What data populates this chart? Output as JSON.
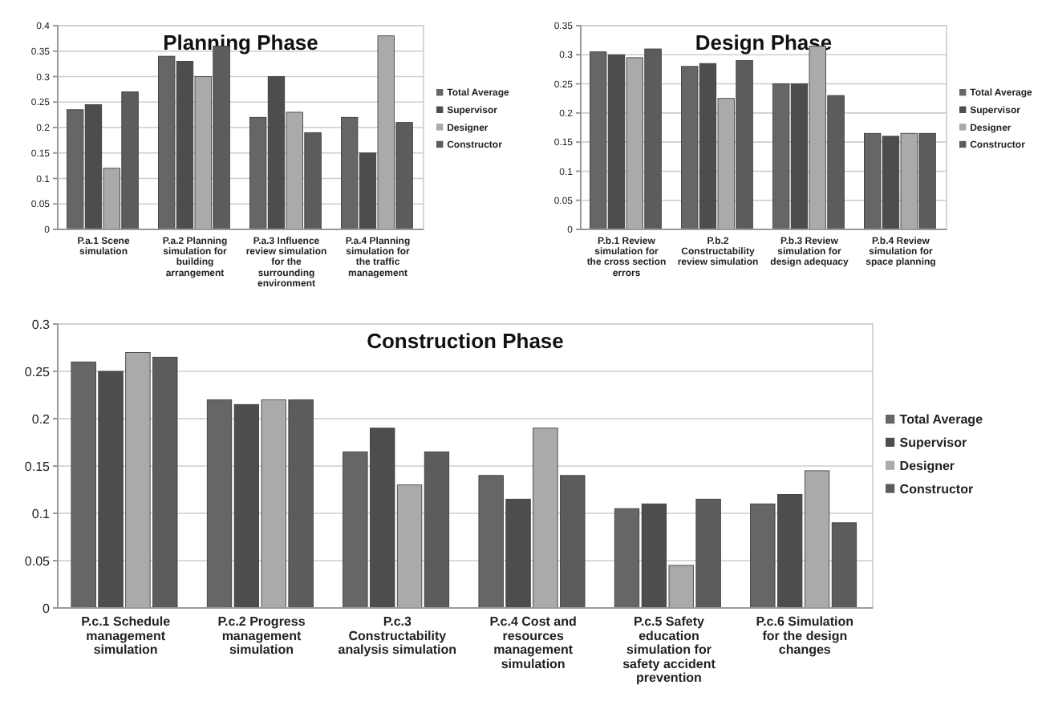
{
  "chart_data": [
    {
      "type": "bar",
      "title": "Planning Phase",
      "categories": [
        "P.a.1 Scene simulation",
        "P.a.2 Planning simulation for building arrangement",
        "P.a.3 Influence review simulation for the surrounding environment",
        "P.a.4 Planning simulation for the traffic management"
      ],
      "series": [
        {
          "name": "Total Average",
          "color": "#666666",
          "values": [
            0.235,
            0.34,
            0.22,
            0.22
          ]
        },
        {
          "name": "Supervisor",
          "color": "#4d4d4d",
          "values": [
            0.245,
            0.33,
            0.3,
            0.15
          ]
        },
        {
          "name": "Designer",
          "color": "#aaaaaa",
          "values": [
            0.12,
            0.3,
            0.23,
            0.38
          ]
        },
        {
          "name": "Constructor",
          "color": "#5c5c5c",
          "values": [
            0.27,
            0.36,
            0.19,
            0.21
          ]
        }
      ],
      "ylim": [
        0,
        0.4
      ],
      "yticks": [
        0,
        0.05,
        0.1,
        0.15,
        0.2,
        0.25,
        0.3,
        0.35,
        0.4
      ],
      "grid": "y",
      "legend": "right"
    },
    {
      "type": "bar",
      "title": "Design Phase",
      "categories": [
        "P.b.1 Review simulation for the cross section errors",
        "P.b.2 Constructability review simulation",
        "P.b.3 Review simulation for design adequacy",
        "P.b.4 Review simulation for space planning"
      ],
      "series": [
        {
          "name": "Total Average",
          "color": "#666666",
          "values": [
            0.305,
            0.28,
            0.25,
            0.165
          ]
        },
        {
          "name": "Supervisor",
          "color": "#4d4d4d",
          "values": [
            0.3,
            0.285,
            0.25,
            0.16
          ]
        },
        {
          "name": "Designer",
          "color": "#aaaaaa",
          "values": [
            0.295,
            0.225,
            0.315,
            0.165
          ]
        },
        {
          "name": "Constructor",
          "color": "#5c5c5c",
          "values": [
            0.31,
            0.29,
            0.23,
            0.165
          ]
        }
      ],
      "ylim": [
        0,
        0.35
      ],
      "yticks": [
        0,
        0.05,
        0.1,
        0.15,
        0.2,
        0.25,
        0.3,
        0.35
      ],
      "grid": "y",
      "legend": "right"
    },
    {
      "type": "bar",
      "title": "Construction Phase",
      "categories": [
        "P.c.1 Schedule management simulation",
        "P.c.2 Progress management simulation",
        "P.c.3 Constructability analysis simulation",
        "P.c.4 Cost and resources management simulation",
        "P.c.5 Safety education simulation for safety accident prevention",
        "P.c.6 Simulation for the design changes"
      ],
      "series": [
        {
          "name": "Total Average",
          "color": "#666666",
          "values": [
            0.26,
            0.22,
            0.165,
            0.14,
            0.105,
            0.11
          ]
        },
        {
          "name": "Supervisor",
          "color": "#4d4d4d",
          "values": [
            0.25,
            0.215,
            0.19,
            0.115,
            0.11,
            0.12
          ]
        },
        {
          "name": "Designer",
          "color": "#aaaaaa",
          "values": [
            0.27,
            0.22,
            0.13,
            0.19,
            0.045,
            0.145
          ]
        },
        {
          "name": "Constructor",
          "color": "#5c5c5c",
          "values": [
            0.265,
            0.22,
            0.165,
            0.14,
            0.115,
            0.09
          ]
        }
      ],
      "ylim": [
        0,
        0.3
      ],
      "yticks": [
        0,
        0.05,
        0.1,
        0.15,
        0.2,
        0.25,
        0.3
      ],
      "grid": "y",
      "legend": "right"
    }
  ]
}
